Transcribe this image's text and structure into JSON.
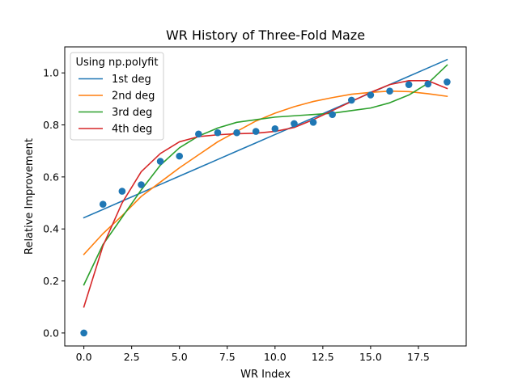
{
  "chart_data": {
    "type": "scatter",
    "title": "WR History of Three-Fold Maze",
    "xlabel": "WR Index",
    "ylabel": "Relative Improvement",
    "xlim": [
      -1.0,
      20.0
    ],
    "ylim": [
      -0.05,
      1.1
    ],
    "xticks": [
      0.0,
      2.5,
      5.0,
      7.5,
      10.0,
      12.5,
      15.0,
      17.5
    ],
    "xtick_labels": [
      "0.0",
      "2.5",
      "5.0",
      "7.5",
      "10.0",
      "12.5",
      "15.0",
      "17.5"
    ],
    "yticks": [
      0.0,
      0.2,
      0.4,
      0.6,
      0.8,
      1.0
    ],
    "ytick_labels": [
      "0.0",
      "0.2",
      "0.4",
      "0.6",
      "0.8",
      "1.0"
    ],
    "grid": false,
    "legend": {
      "title": "Using np.polyfit",
      "placement": "top-left"
    },
    "x": [
      0,
      1,
      2,
      3,
      4,
      5,
      6,
      7,
      8,
      9,
      10,
      11,
      12,
      13,
      14,
      15,
      16,
      17,
      18,
      19
    ],
    "points": {
      "color": "#1f77b4",
      "y": [
        0.0,
        0.495,
        0.545,
        0.57,
        0.66,
        0.68,
        0.765,
        0.77,
        0.77,
        0.775,
        0.785,
        0.805,
        0.81,
        0.84,
        0.895,
        0.915,
        0.93,
        0.955,
        0.957,
        0.965
      ]
    },
    "series": [
      {
        "name": "1st deg",
        "color": "#1f77b4",
        "y": [
          0.443,
          0.475,
          0.507,
          0.539,
          0.571,
          0.603,
          0.635,
          0.667,
          0.699,
          0.731,
          0.763,
          0.795,
          0.827,
          0.859,
          0.891,
          0.923,
          0.955,
          0.987,
          1.019,
          1.051
        ]
      },
      {
        "name": "2nd deg",
        "color": "#ff7f0e",
        "y": [
          0.302,
          0.382,
          0.451,
          0.525,
          0.58,
          0.635,
          0.685,
          0.735,
          0.775,
          0.815,
          0.845,
          0.87,
          0.89,
          0.905,
          0.918,
          0.925,
          0.93,
          0.928,
          0.92,
          0.91
        ]
      },
      {
        "name": "3rd deg",
        "color": "#2ca02c",
        "y": [
          0.185,
          0.34,
          0.445,
          0.55,
          0.645,
          0.712,
          0.757,
          0.788,
          0.81,
          0.82,
          0.83,
          0.835,
          0.84,
          0.845,
          0.855,
          0.865,
          0.885,
          0.915,
          0.96,
          1.03
        ]
      },
      {
        "name": "4th deg",
        "color": "#d62728",
        "y": [
          0.1,
          0.335,
          0.5,
          0.62,
          0.69,
          0.735,
          0.755,
          0.762,
          0.766,
          0.768,
          0.775,
          0.79,
          0.82,
          0.855,
          0.89,
          0.925,
          0.955,
          0.97,
          0.97,
          0.94
        ]
      }
    ]
  }
}
